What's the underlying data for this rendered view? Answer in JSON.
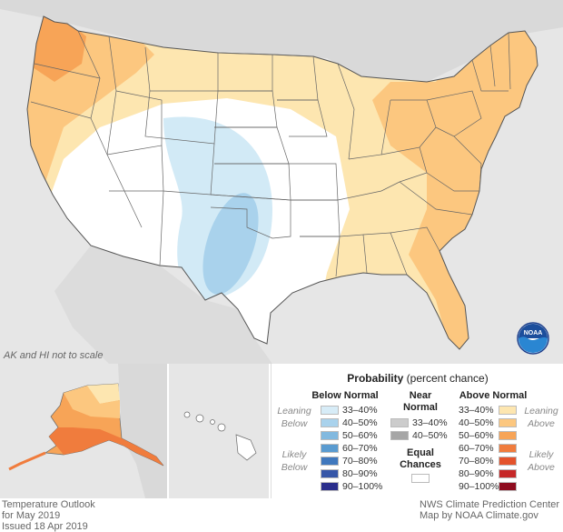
{
  "map": {
    "scale_note": "AK and HI not to scale",
    "colors": {
      "land": "#ffffff",
      "ocean": "#e6e6e6",
      "leaning_above": "#fde6b0",
      "above_40_50": "#fcc77f",
      "above_50_60": "#f7a457",
      "below_33_40": "#d2eaf6",
      "below_40_50": "#a9d2ec",
      "border": "#666666"
    }
  },
  "legend": {
    "title_bold": "Probability",
    "title_rest": "(percent chance)",
    "below": {
      "header": "Below Normal",
      "bins": [
        {
          "label": "33–40%",
          "color": "#d7ecf7"
        },
        {
          "label": "40–50%",
          "color": "#a9d2ec"
        },
        {
          "label": "50–60%",
          "color": "#82b9df"
        },
        {
          "label": "60–70%",
          "color": "#5a9bd0"
        },
        {
          "label": "70–80%",
          "color": "#4078bd"
        },
        {
          "label": "80–90%",
          "color": "#3757a8"
        },
        {
          "label": "90–100%",
          "color": "#2a2e8c"
        }
      ]
    },
    "near": {
      "header_line1": "Near",
      "header_line2": "Normal",
      "bins": [
        {
          "label": "33–40%",
          "color": "#cccccc"
        },
        {
          "label": "40–50%",
          "color": "#a6a6a6"
        }
      ],
      "equal_line1": "Equal",
      "equal_line2": "Chances",
      "equal_color": "#ffffff"
    },
    "above": {
      "header": "Above Normal",
      "bins": [
        {
          "label": "33–40%",
          "color": "#fde6b0"
        },
        {
          "label": "40–50%",
          "color": "#fcc77f"
        },
        {
          "label": "50–60%",
          "color": "#f7a457"
        },
        {
          "label": "60–70%",
          "color": "#f07c3d"
        },
        {
          "label": "70–80%",
          "color": "#e4532c"
        },
        {
          "label": "80–90%",
          "color": "#c62828"
        },
        {
          "label": "90–100%",
          "color": "#8e0c1f"
        }
      ]
    },
    "leaning_below_1": "Leaning",
    "leaning_below_2": "Below",
    "likely_below_1": "Likely",
    "likely_below_2": "Below",
    "leaning_above_1": "Leaning",
    "leaning_above_2": "Above",
    "likely_above_1": "Likely",
    "likely_above_2": "Above"
  },
  "footer": {
    "left_line1": "Temperature Outlook",
    "left_line2": "for May 2019",
    "left_line3": "Issued 18 Apr 2019",
    "right_line1": "NWS Climate Prediction Center",
    "right_line2": "Map by NOAA Climate.gov"
  },
  "logo": {
    "text": "NOAA",
    "icon": "noaa-logo-icon"
  }
}
